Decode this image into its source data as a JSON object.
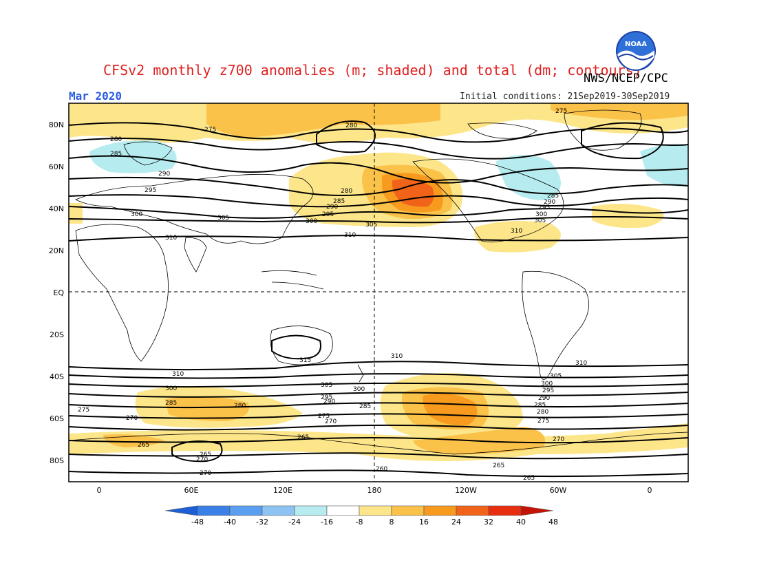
{
  "title": "CFSv2 monthly z700 anomalies (m; shaded) and total (dm; contours)",
  "agency": "NWS/NCEP/CPC",
  "valid_month": "Mar 2020",
  "initial_conditions": "Initial conditions: 21Sep2019-30Sep2019",
  "logo_text": "NOAA",
  "lat_labels": [
    "80N",
    "60N",
    "40N",
    "20N",
    "EQ",
    "20S",
    "40S",
    "60S",
    "80S"
  ],
  "lon_labels": [
    "0",
    "60E",
    "120E",
    "180",
    "120W",
    "60W",
    "0"
  ],
  "colorbar": {
    "labels": [
      "-48",
      "-40",
      "-32",
      "-24",
      "-16",
      "-8",
      "8",
      "16",
      "24",
      "32",
      "40",
      "48"
    ],
    "colors": [
      "#1c5fd6",
      "#3a80e6",
      "#5a9ef0",
      "#8ec4f4",
      "#b6ecf0",
      "#ffffff",
      "#fde68a",
      "#fbc24a",
      "#f79a1e",
      "#f2631a",
      "#e82e10",
      "#c41408"
    ]
  },
  "contour_labels": [
    {
      "text": "275"
    },
    {
      "text": "280"
    },
    {
      "text": "285"
    },
    {
      "text": "290"
    },
    {
      "text": "295"
    },
    {
      "text": "300"
    },
    {
      "text": "305"
    },
    {
      "text": "310"
    },
    {
      "text": "315"
    },
    {
      "text": "280"
    },
    {
      "text": "285"
    },
    {
      "text": "290"
    },
    {
      "text": "295"
    },
    {
      "text": "300"
    },
    {
      "text": "305"
    },
    {
      "text": "310"
    },
    {
      "text": "275"
    },
    {
      "text": "280"
    },
    {
      "text": "285"
    },
    {
      "text": "290"
    },
    {
      "text": "295"
    },
    {
      "text": "300"
    },
    {
      "text": "305"
    },
    {
      "text": "310"
    },
    {
      "text": "310"
    },
    {
      "text": "300"
    },
    {
      "text": "285"
    },
    {
      "text": "275"
    },
    {
      "text": "270"
    },
    {
      "text": "280"
    },
    {
      "text": "265"
    },
    {
      "text": "265"
    },
    {
      "text": "270"
    },
    {
      "text": "270"
    },
    {
      "text": "305"
    },
    {
      "text": "300"
    },
    {
      "text": "295"
    },
    {
      "text": "290"
    },
    {
      "text": "285"
    },
    {
      "text": "275"
    },
    {
      "text": "270"
    },
    {
      "text": "265"
    },
    {
      "text": "260"
    },
    {
      "text": "305"
    },
    {
      "text": "300"
    },
    {
      "text": "295"
    },
    {
      "text": "290"
    },
    {
      "text": "285"
    },
    {
      "text": "280"
    },
    {
      "text": "275"
    },
    {
      "text": "270"
    },
    {
      "text": "265"
    },
    {
      "text": "265"
    },
    {
      "text": "310"
    },
    {
      "text": "310"
    }
  ]
}
